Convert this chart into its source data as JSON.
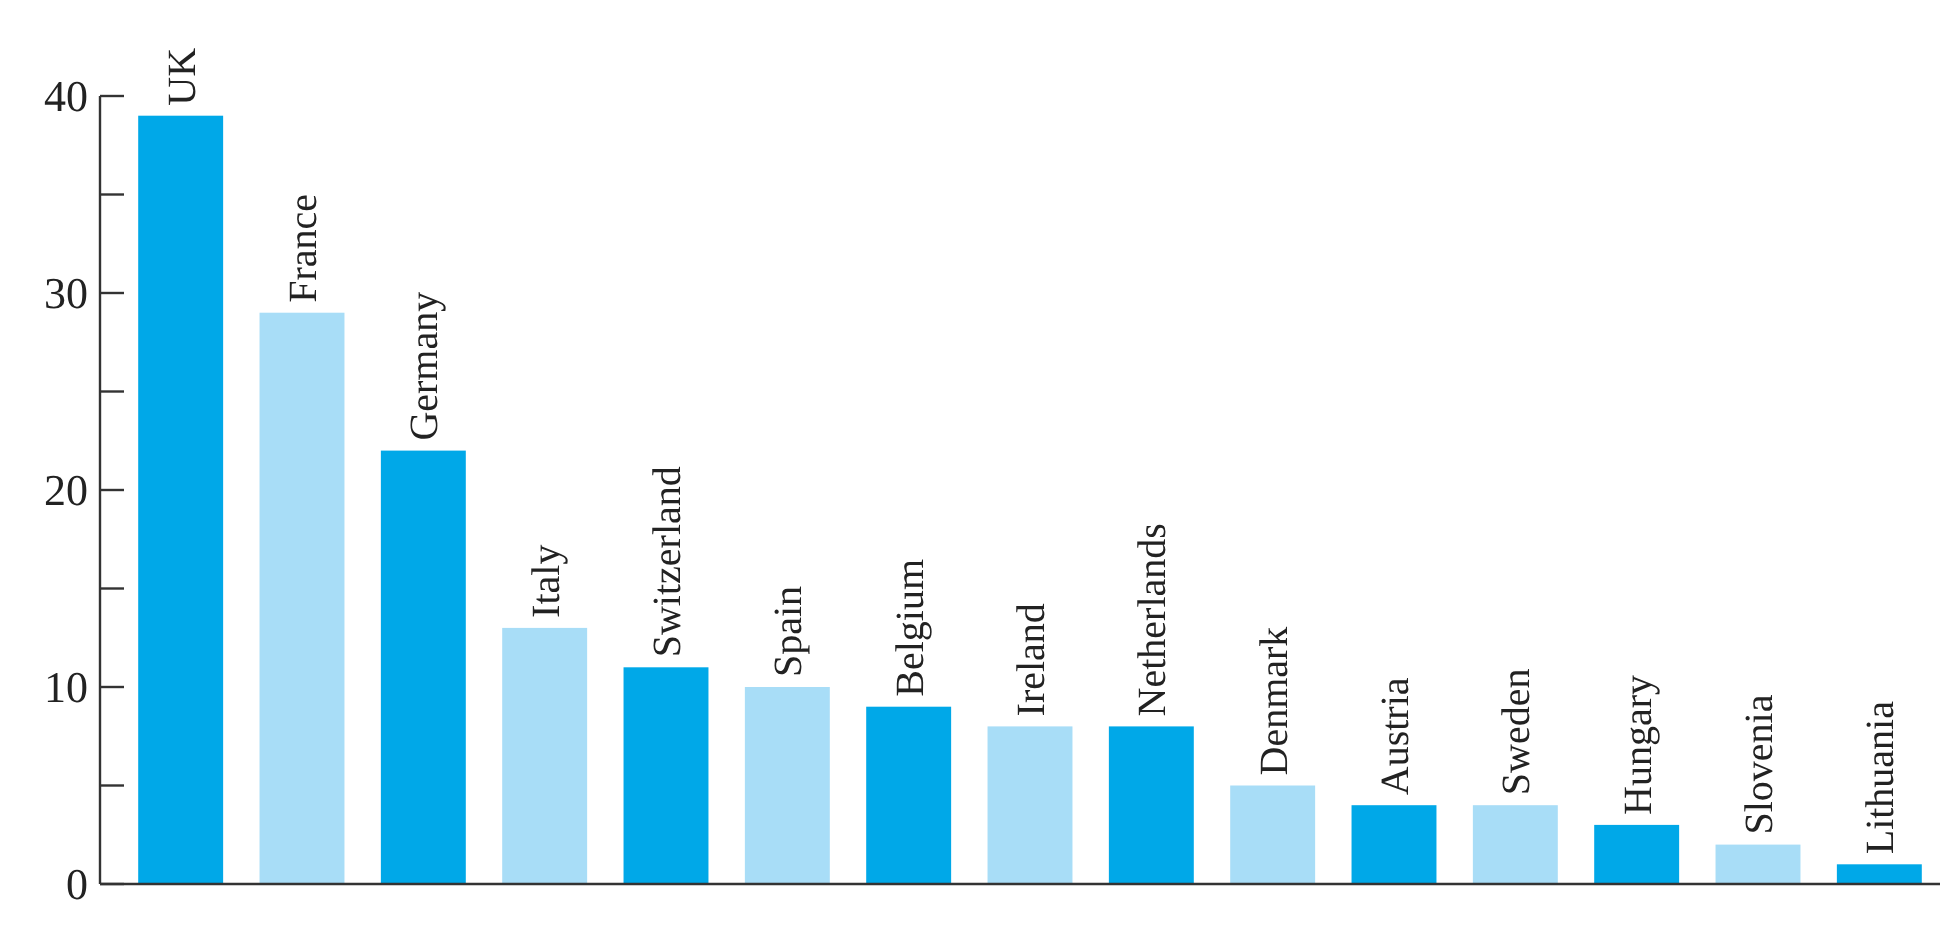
{
  "chart_data": {
    "type": "bar",
    "categories": [
      "UK",
      "France",
      "Germany",
      "Italy",
      "Switzerland",
      "Spain",
      "Belgium",
      "Ireland",
      "Netherlands",
      "Denmark",
      "Austria",
      "Sweden",
      "Hungary",
      "Slovenia",
      "Lithuania"
    ],
    "values": [
      39,
      29,
      22,
      13,
      11,
      10,
      9,
      8,
      8,
      5,
      4,
      4,
      3,
      2,
      1
    ],
    "colors": [
      "#00a8e8",
      "#a8ddf7",
      "#00a8e8",
      "#a8ddf7",
      "#00a8e8",
      "#a8ddf7",
      "#00a8e8",
      "#a8ddf7",
      "#00a8e8",
      "#a8ddf7",
      "#00a8e8",
      "#a8ddf7",
      "#00a8e8",
      "#a8ddf7",
      "#00a8e8"
    ],
    "ylim": [
      0,
      40
    ],
    "yticks": [
      0,
      {
        "value": 5,
        "label": null
      },
      10,
      {
        "value": 15,
        "label": null
      },
      20,
      {
        "value": 25,
        "label": null
      },
      30,
      {
        "value": 35,
        "label": null
      },
      40
    ],
    "grid": false
  }
}
